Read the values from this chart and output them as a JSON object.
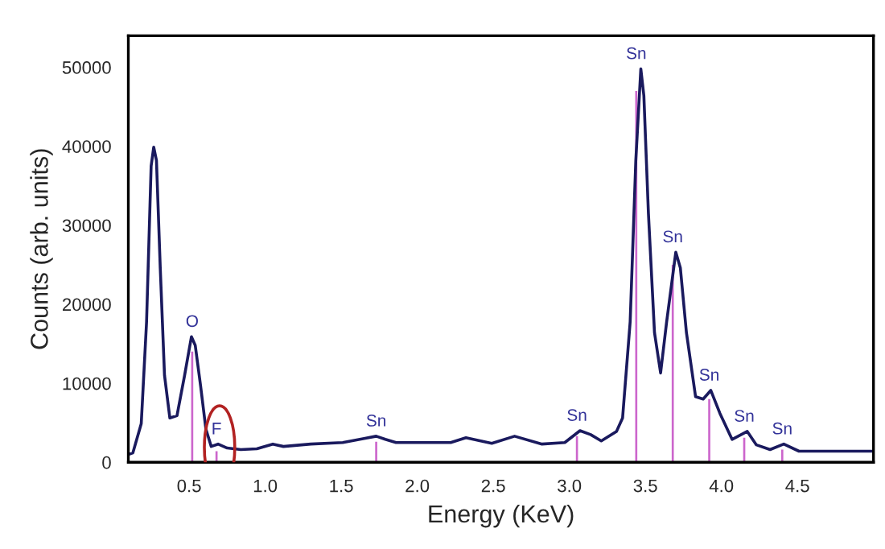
{
  "chart_data": {
    "type": "line",
    "xlabel": "Energy (KeV)",
    "ylabel": "Counts (arb. units)",
    "xlim": [
      0.1,
      5.0
    ],
    "ylim": [
      0,
      54000
    ],
    "xticks": [
      0.5,
      {
        "value": 1,
        "label": "1.0"
      },
      1.5,
      {
        "value": 2,
        "label": "2.0"
      },
      2.5,
      {
        "value": 3,
        "label": "3.0"
      },
      3.5,
      {
        "value": 4,
        "label": "4.0"
      },
      4.5
    ],
    "yticks": [
      0,
      10000,
      20000,
      30000,
      40000,
      50000
    ],
    "grid": false,
    "legend": false,
    "marker": "none",
    "line_style": "solid",
    "series": [
      {
        "color": "#1a1a5e",
        "x": [
          0.1,
          0.13,
          0.185,
          0.22,
          0.25,
          0.267,
          0.285,
          0.31,
          0.338,
          0.373,
          0.42,
          0.47,
          0.515,
          0.54,
          0.575,
          0.61,
          0.645,
          0.69,
          0.75,
          0.84,
          0.945,
          1.05,
          1.12,
          1.3,
          1.51,
          1.65,
          1.73,
          1.79,
          1.86,
          2.22,
          2.32,
          2.49,
          2.64,
          2.82,
          2.97,
          3.07,
          3.14,
          3.21,
          3.31,
          3.35,
          3.4,
          3.437,
          3.47,
          3.49,
          3.52,
          3.56,
          3.6,
          3.64,
          3.7,
          3.73,
          3.77,
          3.83,
          3.88,
          3.93,
          3.99,
          4.07,
          4.17,
          4.23,
          4.32,
          4.41,
          4.51,
          4.99
        ],
        "values": [
          1000,
          1200,
          4900,
          17800,
          37500,
          39900,
          38200,
          24600,
          11000,
          5600,
          5900,
          11000,
          15900,
          14800,
          9700,
          4200,
          2000,
          2300,
          1800,
          1600,
          1700,
          2300,
          2000,
          2300,
          2500,
          3000,
          3300,
          2900,
          2500,
          2500,
          3100,
          2400,
          3300,
          2300,
          2500,
          4000,
          3500,
          2700,
          3900,
          5600,
          17800,
          38200,
          49800,
          46400,
          31500,
          16400,
          11300,
          17800,
          26600,
          24600,
          16400,
          8300,
          8000,
          9100,
          6200,
          2900,
          3900,
          2200,
          1600,
          2300,
          1400,
          1400
        ]
      },
      {
        "type": "bar",
        "color": "#cc66cc",
        "x": [
          0.52,
          0.68,
          1.73,
          3.05,
          3.44,
          3.68,
          3.92,
          4.15,
          4.4
        ],
        "values": [
          14000,
          1400,
          2600,
          3300,
          47000,
          25000,
          8000,
          3100,
          1600
        ]
      }
    ],
    "annotations": [
      {
        "text": "O",
        "x": 0.52,
        "y": 15900
      },
      {
        "text": "F",
        "x": 0.68,
        "y": 2300
      },
      {
        "text": "Sn",
        "x": 1.73,
        "y": 3300
      },
      {
        "text": "Sn",
        "x": 3.05,
        "y": 4000
      },
      {
        "text": "Sn",
        "x": 3.44,
        "y": 49800
      },
      {
        "text": "Sn",
        "x": 3.68,
        "y": 26600
      },
      {
        "text": "Sn",
        "x": 3.92,
        "y": 9100
      },
      {
        "text": "Sn",
        "x": 4.15,
        "y": 3900
      },
      {
        "text": "Sn",
        "x": 4.4,
        "y": 2300
      }
    ]
  }
}
